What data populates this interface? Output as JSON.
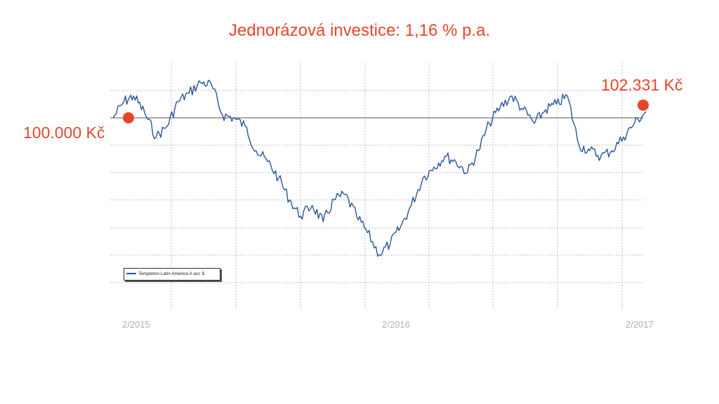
{
  "title": "Jednorázová investice: 1,16 % p.a.",
  "annotations": {
    "start_value_label": "100.000 Kč",
    "end_value_label": "102.331 Kč"
  },
  "colors": {
    "accent": "#e5462b",
    "series": "#2a5597",
    "grid": "#bdbdbd",
    "baseline": "#555555",
    "axis_label": "#b0b0b0"
  },
  "chart_data": {
    "type": "line",
    "title": "Jednorázová investice: 1,16 % p.a.",
    "xlabel": "",
    "ylabel": "",
    "x_tick_labels": [
      "2/2015",
      "2/2016",
      "2/2017"
    ],
    "xlim": [
      "2015-02",
      "2017-02"
    ],
    "ylim": [
      40000,
      120000
    ],
    "grid": true,
    "baseline": 100000,
    "legend": {
      "placement": "bottom-left",
      "entries": [
        "Templeton Latin America A acc $"
      ]
    },
    "series": [
      {
        "name": "Templeton Latin America A acc $",
        "x": [
          "2015-02-05",
          "2015-02-20",
          "2015-03-05",
          "2015-03-20",
          "2015-04-05",
          "2015-04-20",
          "2015-05-05",
          "2015-05-20",
          "2015-06-05",
          "2015-06-20",
          "2015-07-05",
          "2015-07-20",
          "2015-08-05",
          "2015-08-20",
          "2015-09-05",
          "2015-09-20",
          "2015-10-05",
          "2015-10-20",
          "2015-11-05",
          "2015-11-20",
          "2015-12-05",
          "2015-12-20",
          "2016-01-05",
          "2016-01-20",
          "2016-02-05",
          "2016-02-20",
          "2016-03-05",
          "2016-03-20",
          "2016-04-05",
          "2016-04-20",
          "2016-05-05",
          "2016-05-20",
          "2016-06-05",
          "2016-06-20",
          "2016-07-05",
          "2016-07-20",
          "2016-08-05",
          "2016-08-20",
          "2016-09-05",
          "2016-09-20",
          "2016-10-05",
          "2016-10-20",
          "2016-11-05",
          "2016-11-20",
          "2016-12-05",
          "2016-12-20",
          "2017-01-05",
          "2017-01-20",
          "2017-02-05"
        ],
        "values": [
          100000,
          106000,
          108000,
          102000,
          93000,
          97000,
          106000,
          109000,
          113000,
          112000,
          101000,
          100000,
          97000,
          88000,
          84000,
          78000,
          70000,
          64000,
          68000,
          62000,
          70000,
          72000,
          64000,
          58000,
          50000,
          54000,
          60000,
          68000,
          78000,
          82000,
          86000,
          84000,
          80000,
          88000,
          98000,
          104000,
          108000,
          103000,
          98000,
          103000,
          105000,
          108000,
          90000,
          88000,
          86000,
          88000,
          93000,
          98000,
          102331
        ]
      }
    ]
  }
}
